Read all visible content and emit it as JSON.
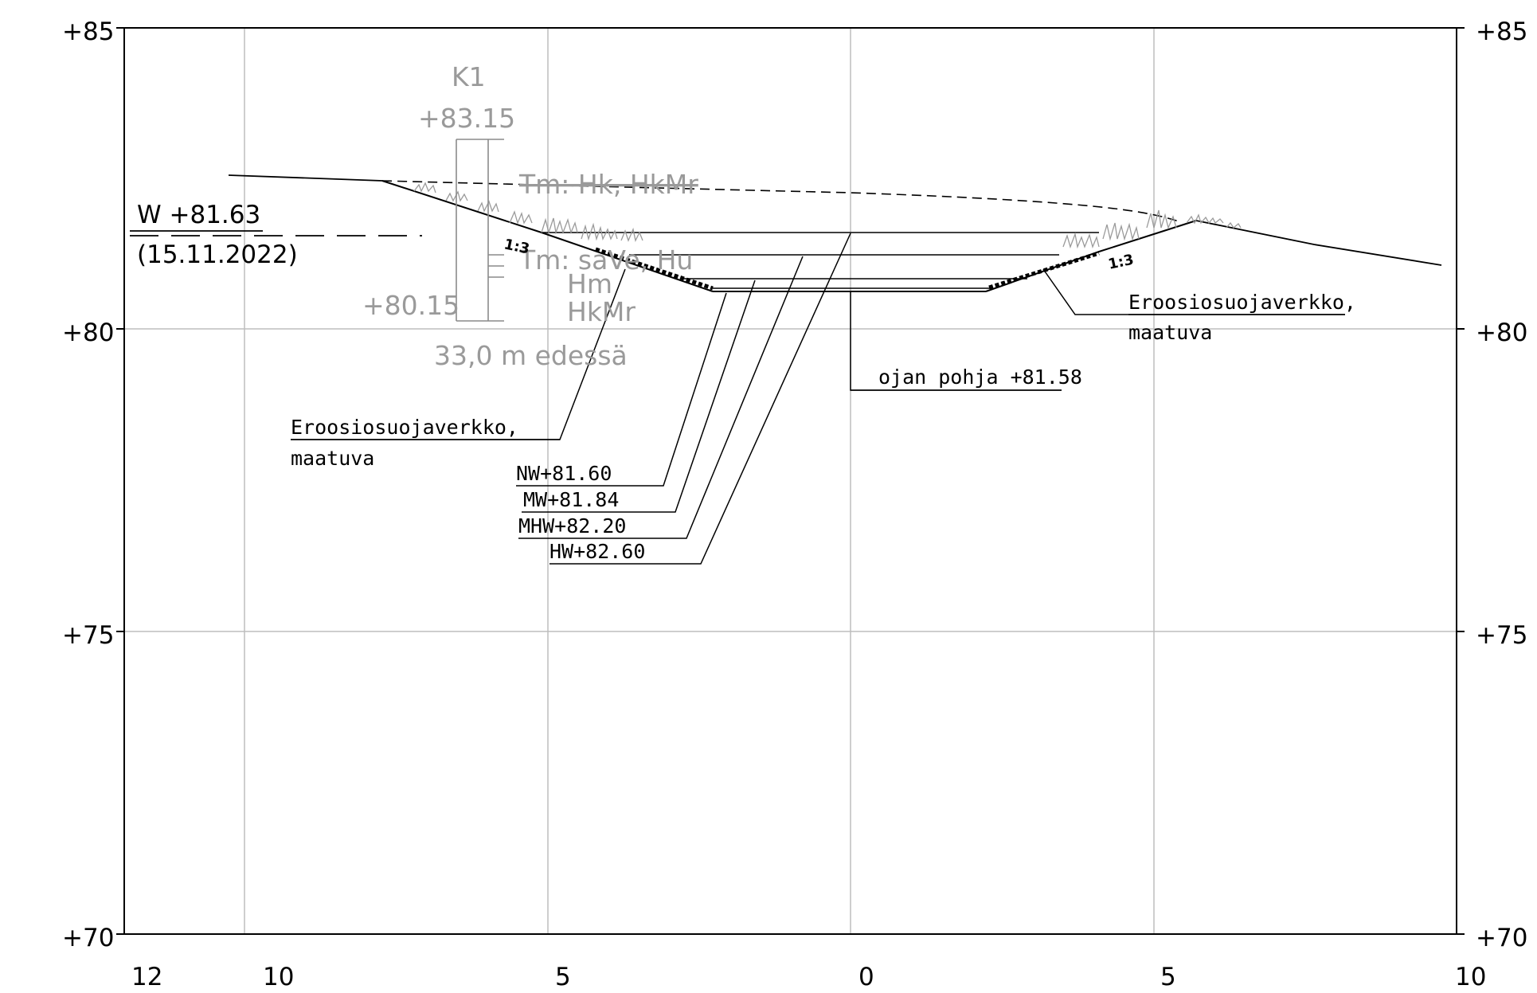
{
  "y_axis": {
    "left_labels": [
      "+85",
      "+80",
      "+75",
      "+70"
    ],
    "right_labels": [
      "+85",
      "+80",
      "+75",
      "+70"
    ]
  },
  "x_axis": {
    "labels": [
      "12",
      "10",
      "5",
      "0",
      "5",
      "10"
    ]
  },
  "borehole": {
    "name": "K1",
    "top_level": "+83.15",
    "bottom_level": "+80.15",
    "soil_upper": "Tm: Hk, HkMr",
    "soil_lower": "Tm: saVe, Hu",
    "soil_hm": "Hm",
    "soil_hkmr": "HkMr",
    "distance_note": "33,0 m edessä"
  },
  "water_level": {
    "label": "W +81.63",
    "date": "(15.11.2022)"
  },
  "slopes": {
    "left": "1:3",
    "right": "1:3"
  },
  "annotations": {
    "erosion_left_line1": "Eroosiosuojaverkko,",
    "erosion_left_line2": "maatuva",
    "erosion_right_line1": "Eroosiosuojaverkko,",
    "erosion_right_line2": "maatuva",
    "ditch_bottom": "ojan pohja +81.58",
    "nw": "NW+81.60",
    "mw": "MW+81.84",
    "mhw": "MHW+82.20",
    "hw": "HW+82.60"
  }
}
